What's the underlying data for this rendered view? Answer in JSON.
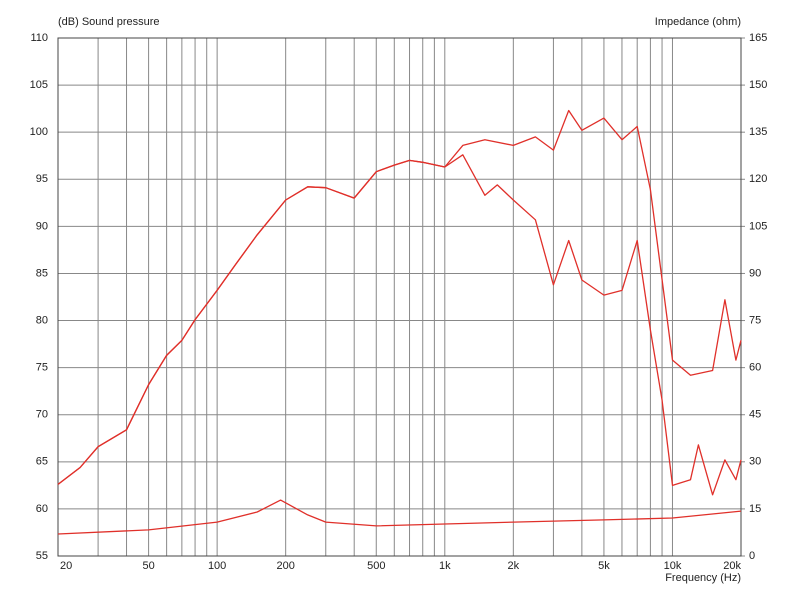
{
  "chart_data": {
    "type": "line",
    "ylabel": "(dB)  Sound pressure",
    "y2label": "Impedance  (ohm)",
    "xlabel": "Frequency  (Hz)",
    "xscale": "log",
    "grid": true,
    "xlim": [
      20,
      20000
    ],
    "xticks": [
      20,
      50,
      100,
      200,
      500,
      {
        "value": 1000,
        "label": "1k"
      },
      {
        "value": 2000,
        "label": "2k"
      },
      {
        "value": 5000,
        "label": "5k"
      },
      {
        "value": 10000,
        "label": "10k"
      },
      {
        "value": 20000,
        "label": "20k"
      }
    ],
    "xminor": [
      30,
      40,
      60,
      70,
      80,
      90,
      300,
      400,
      600,
      700,
      800,
      900,
      3000,
      4000,
      6000,
      7000,
      8000,
      9000
    ],
    "ylim": [
      55,
      110
    ],
    "yticks": [
      55,
      60,
      65,
      70,
      75,
      80,
      85,
      90,
      95,
      100,
      105,
      110
    ],
    "y2lim": [
      0,
      165
    ],
    "y2ticks": [
      0,
      15,
      30,
      45,
      60,
      75,
      90,
      105,
      120,
      135,
      150,
      165
    ],
    "series": [
      {
        "color": "#e0302a",
        "x": [
          20,
          25,
          30,
          40,
          50,
          60,
          70,
          80,
          100,
          120,
          150,
          200,
          250,
          300,
          400,
          500,
          600,
          700,
          800,
          1000,
          1200,
          1500,
          2000,
          2500,
          3000,
          3500,
          4000,
          5000,
          6000,
          7000,
          8000,
          10000,
          12000,
          15000,
          17000,
          19000,
          20000
        ],
        "values": [
          62.6,
          64.4,
          66.6,
          68.4,
          73.2,
          76.3,
          77.9,
          80.1,
          83.2,
          85.9,
          89.1,
          92.8,
          94.2,
          94.1,
          93.0,
          95.8,
          96.5,
          97.0,
          96.8,
          96.3,
          98.6,
          99.2,
          98.6,
          99.5,
          98.1,
          102.3,
          100.2,
          101.5,
          99.2,
          100.6,
          93.9,
          75.8,
          74.2,
          74.7,
          82.2,
          75.8,
          77.9
        ]
      },
      {
        "color": "#e0302a",
        "x": [
          20,
          25,
          30,
          40,
          50,
          60,
          70,
          80,
          100,
          120,
          150,
          200,
          250,
          300,
          400,
          500,
          600,
          700,
          800,
          1000,
          1200,
          1500,
          1700,
          2000,
          2500,
          3000,
          3500,
          4000,
          5000,
          6000,
          7000,
          8000,
          9000,
          10000,
          12000,
          13000,
          15000,
          17000,
          19000,
          20000
        ],
        "values": [
          62.6,
          64.4,
          66.6,
          68.4,
          73.2,
          76.3,
          77.9,
          80.1,
          83.2,
          85.9,
          89.1,
          92.8,
          94.2,
          94.1,
          93.0,
          95.8,
          96.5,
          97.0,
          96.8,
          96.3,
          97.6,
          93.3,
          94.4,
          92.8,
          90.7,
          83.8,
          88.5,
          84.3,
          82.7,
          83.2,
          88.5,
          79.0,
          71.6,
          62.5,
          63.1,
          66.8,
          61.5,
          65.2,
          63.1,
          65.2
        ]
      },
      {
        "color": "#e0302a",
        "axis": "y2",
        "x": [
          20,
          50,
          100,
          150,
          190,
          250,
          300,
          500,
          1000,
          2000,
          5000,
          10000,
          20000
        ],
        "values": [
          7.0,
          8.3,
          10.8,
          14.0,
          17.8,
          13.1,
          10.8,
          9.6,
          10.2,
          10.8,
          11.5,
          12.1,
          14.3
        ]
      }
    ]
  }
}
